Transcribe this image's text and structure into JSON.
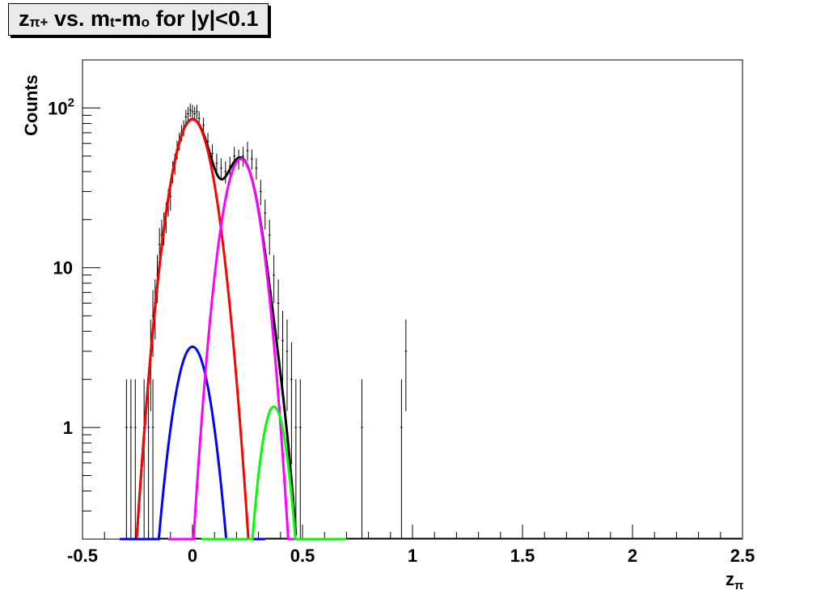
{
  "title": {
    "z": "z",
    "z_sub": "π+",
    "vs": " vs. m",
    "t_sub": "t",
    "minus": "-m",
    "o_sub": "o",
    "rest": " for |y|<0.1"
  },
  "chart_data": {
    "type": "scatter",
    "title": "zπ+ vs. mt-mo for |y|<0.1",
    "xlabel": "zπ",
    "ylabel": "Counts",
    "xlim": [
      -0.5,
      2.5
    ],
    "ylim": [
      0.2,
      200
    ],
    "log_y": true,
    "grid": false,
    "x_ticks": [
      {
        "value": -0.5,
        "label": "-0.5"
      },
      {
        "value": 0,
        "label": "0"
      },
      {
        "value": 0.5,
        "label": "0.5"
      },
      {
        "value": 1,
        "label": "1"
      },
      {
        "value": 1.5,
        "label": "1.5"
      },
      {
        "value": 2,
        "label": "2"
      },
      {
        "value": 2.5,
        "label": "2.5"
      }
    ],
    "y_ticks": [
      {
        "value": 1,
        "label": "1"
      },
      {
        "value": 10,
        "label": "10"
      },
      {
        "value": 100,
        "label": "10",
        "sup": "2"
      }
    ],
    "data_points": [
      {
        "x": -0.3,
        "y": 1
      },
      {
        "x": -0.28,
        "y": 1
      },
      {
        "x": -0.26,
        "y": 1
      },
      {
        "x": -0.22,
        "y": 1
      },
      {
        "x": -0.2,
        "y": 1
      },
      {
        "x": -0.18,
        "y": 1
      },
      {
        "x": -0.19,
        "y": 3
      },
      {
        "x": -0.18,
        "y": 5
      },
      {
        "x": -0.17,
        "y": 6
      },
      {
        "x": -0.16,
        "y": 9
      },
      {
        "x": -0.15,
        "y": 14
      },
      {
        "x": -0.14,
        "y": 16
      },
      {
        "x": -0.13,
        "y": 18
      },
      {
        "x": -0.12,
        "y": 21
      },
      {
        "x": -0.11,
        "y": 26
      },
      {
        "x": -0.1,
        "y": 28
      },
      {
        "x": -0.09,
        "y": 40
      },
      {
        "x": -0.08,
        "y": 45
      },
      {
        "x": -0.07,
        "y": 55
      },
      {
        "x": -0.06,
        "y": 62
      },
      {
        "x": -0.05,
        "y": 70
      },
      {
        "x": -0.04,
        "y": 75
      },
      {
        "x": -0.03,
        "y": 88
      },
      {
        "x": -0.02,
        "y": 92
      },
      {
        "x": -0.01,
        "y": 97
      },
      {
        "x": 0.0,
        "y": 95
      },
      {
        "x": 0.01,
        "y": 92
      },
      {
        "x": 0.02,
        "y": 95
      },
      {
        "x": 0.03,
        "y": 86
      },
      {
        "x": 0.05,
        "y": 78
      },
      {
        "x": 0.07,
        "y": 62
      },
      {
        "x": 0.09,
        "y": 52
      },
      {
        "x": 0.11,
        "y": 45
      },
      {
        "x": 0.13,
        "y": 42
      },
      {
        "x": 0.15,
        "y": 40
      },
      {
        "x": 0.17,
        "y": 43
      },
      {
        "x": 0.19,
        "y": 50
      },
      {
        "x": 0.21,
        "y": 48
      },
      {
        "x": 0.23,
        "y": 50
      },
      {
        "x": 0.25,
        "y": 54
      },
      {
        "x": 0.27,
        "y": 48
      },
      {
        "x": 0.29,
        "y": 42
      },
      {
        "x": 0.31,
        "y": 30
      },
      {
        "x": 0.33,
        "y": 22
      },
      {
        "x": 0.35,
        "y": 16
      },
      {
        "x": 0.37,
        "y": 9
      },
      {
        "x": 0.39,
        "y": 6
      },
      {
        "x": 0.41,
        "y": 3.5
      },
      {
        "x": 0.43,
        "y": 3
      },
      {
        "x": 0.45,
        "y": 2
      },
      {
        "x": 0.47,
        "y": 1
      },
      {
        "x": 0.49,
        "y": 1
      },
      {
        "x": 0.77,
        "y": 1
      },
      {
        "x": 0.95,
        "y": 1
      },
      {
        "x": 0.97,
        "y": 3
      }
    ],
    "fit_curves": [
      {
        "color": "#000000",
        "components": [
          {
            "A": 85,
            "mu": 0.0,
            "sigma": 0.073
          },
          {
            "A": 48,
            "mu": 0.22,
            "sigma": 0.065
          },
          {
            "A": 1.35,
            "mu": 0.37,
            "sigma": 0.05
          }
        ],
        "xrange": [
          -0.32,
          0.47
        ]
      },
      {
        "color": "#ff0000",
        "components": [
          {
            "A": 85,
            "mu": 0.0,
            "sigma": 0.073
          }
        ],
        "xrange": [
          -0.33,
          0.33
        ]
      },
      {
        "color": "#0000ff",
        "components": [
          {
            "A": 3.2,
            "mu": 0.0,
            "sigma": 0.065
          }
        ],
        "xrange": [
          -0.33,
          0.33
        ]
      },
      {
        "color": "#ff00ff",
        "components": [
          {
            "A": 48,
            "mu": 0.22,
            "sigma": 0.065
          }
        ],
        "xrange": [
          -0.11,
          0.55
        ]
      },
      {
        "color": "#00ff00",
        "components": [
          {
            "A": 1.35,
            "mu": 0.37,
            "sigma": 0.05
          }
        ],
        "xrange": [
          0.04,
          0.7
        ]
      }
    ]
  }
}
